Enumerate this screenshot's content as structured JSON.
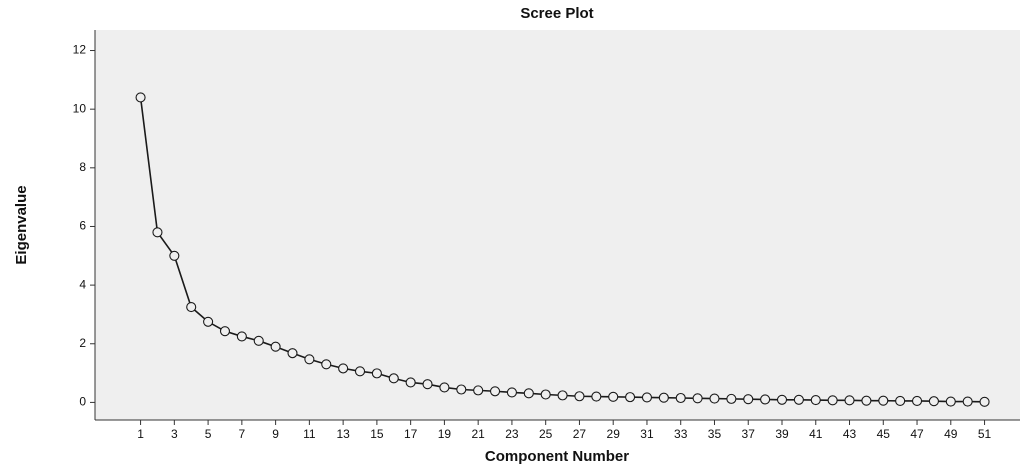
{
  "chart_data": {
    "type": "line",
    "title": "Scree Plot",
    "x_label": "Component Number",
    "y_label": "Eigenvalue",
    "x": [
      1,
      2,
      3,
      4,
      5,
      6,
      7,
      8,
      9,
      10,
      11,
      12,
      13,
      14,
      15,
      16,
      17,
      18,
      19,
      20,
      21,
      22,
      23,
      24,
      25,
      26,
      27,
      28,
      29,
      30,
      31,
      32,
      33,
      34,
      35,
      36,
      37,
      38,
      39,
      40,
      41,
      42,
      43,
      44,
      45,
      46,
      47,
      48,
      49,
      50,
      51
    ],
    "series": [
      {
        "name": "Eigenvalue",
        "color": "#1a1a1a",
        "values": [
          10.4,
          5.8,
          5.0,
          3.25,
          2.75,
          2.43,
          2.25,
          2.1,
          1.9,
          1.68,
          1.47,
          1.3,
          1.16,
          1.06,
          0.99,
          0.82,
          0.68,
          0.62,
          0.51,
          0.44,
          0.41,
          0.38,
          0.34,
          0.31,
          0.27,
          0.24,
          0.21,
          0.2,
          0.19,
          0.18,
          0.17,
          0.16,
          0.15,
          0.14,
          0.13,
          0.12,
          0.11,
          0.1,
          0.09,
          0.09,
          0.08,
          0.07,
          0.07,
          0.06,
          0.06,
          0.05,
          0.05,
          0.04,
          0.03,
          0.03,
          0.02
        ]
      }
    ],
    "xlim": [
      -1.7,
      53.1
    ],
    "xticks": [
      1,
      3,
      5,
      7,
      9,
      11,
      13,
      15,
      17,
      19,
      21,
      23,
      25,
      27,
      29,
      31,
      33,
      35,
      37,
      39,
      41,
      43,
      45,
      47,
      49,
      51
    ],
    "ylim": [
      -0.6,
      12.7
    ],
    "yticks": [
      0,
      2,
      4,
      6,
      8,
      10,
      12
    ]
  }
}
